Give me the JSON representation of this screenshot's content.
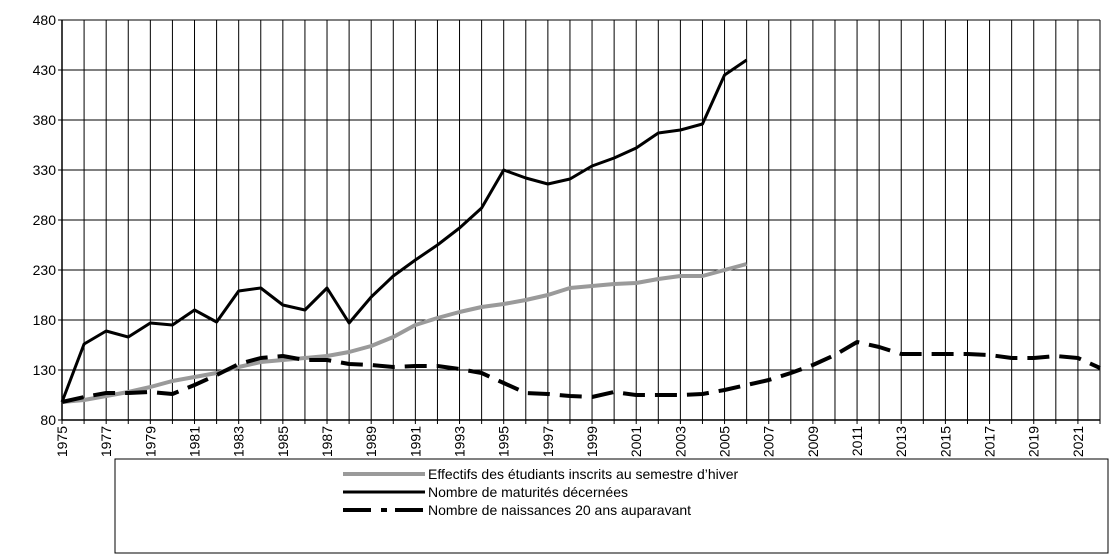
{
  "chart_data": {
    "type": "line",
    "categories": [
      "1975",
      null,
      "1977",
      null,
      "1979",
      null,
      "1981",
      null,
      "1983",
      null,
      "1985",
      null,
      "1987",
      null,
      "1989",
      null,
      "1991",
      null,
      "1993",
      null,
      "1995",
      null,
      "1997",
      null,
      "1999",
      null,
      "2001",
      null,
      "2003",
      null,
      "2005",
      null,
      "2007",
      null,
      "2009",
      null,
      "2011",
      null,
      "2013",
      null,
      "2015",
      null,
      "2017",
      null,
      "2019",
      null,
      "2021",
      null
    ],
    "series": [
      {
        "name": "Effectifs des étudiants inscrits au semestre d’hiver",
        "color": "#9a9a9a",
        "style": "solid",
        "values": [
          98,
          100,
          104,
          108,
          113,
          119,
          123,
          127,
          133,
          138,
          140,
          142,
          144,
          148,
          154,
          163,
          175,
          182,
          188,
          193,
          196,
          200,
          205,
          212,
          214,
          216,
          217,
          221,
          224,
          224,
          230,
          236,
          null,
          null,
          null,
          null,
          null,
          null,
          null,
          null,
          null,
          null,
          null,
          null,
          null,
          null,
          null,
          null
        ]
      },
      {
        "name": "Nombre de maturités décernées",
        "color": "#000000",
        "style": "solid",
        "values": [
          98,
          156,
          169,
          163,
          177,
          175,
          190,
          178,
          209,
          212,
          195,
          190,
          212,
          177,
          203,
          224,
          240,
          255,
          272,
          292,
          330,
          322,
          316,
          321,
          334,
          342,
          352,
          367,
          370,
          376,
          425,
          440,
          null,
          null,
          null,
          null,
          null,
          null,
          null,
          null,
          null,
          null,
          null,
          null,
          null,
          null,
          null,
          null
        ]
      },
      {
        "name": "Nombre de naissances 20 ans auparavant",
        "color": "#000000",
        "style": "dashed",
        "values": [
          98,
          103,
          107,
          107,
          108,
          106,
          115,
          125,
          136,
          142,
          144,
          140,
          140,
          136,
          135,
          133,
          134,
          134,
          131,
          127,
          117,
          107,
          106,
          104,
          103,
          108,
          105,
          105,
          105,
          106,
          110,
          115,
          120,
          127,
          135,
          145,
          158,
          153,
          146,
          146,
          146,
          146,
          145,
          142,
          142,
          144,
          142,
          132
        ]
      }
    ],
    "ylim": [
      80,
      480
    ],
    "yticks": [
      80,
      130,
      180,
      230,
      280,
      330,
      380,
      430,
      480
    ],
    "grid": true,
    "legend": "bottom"
  }
}
